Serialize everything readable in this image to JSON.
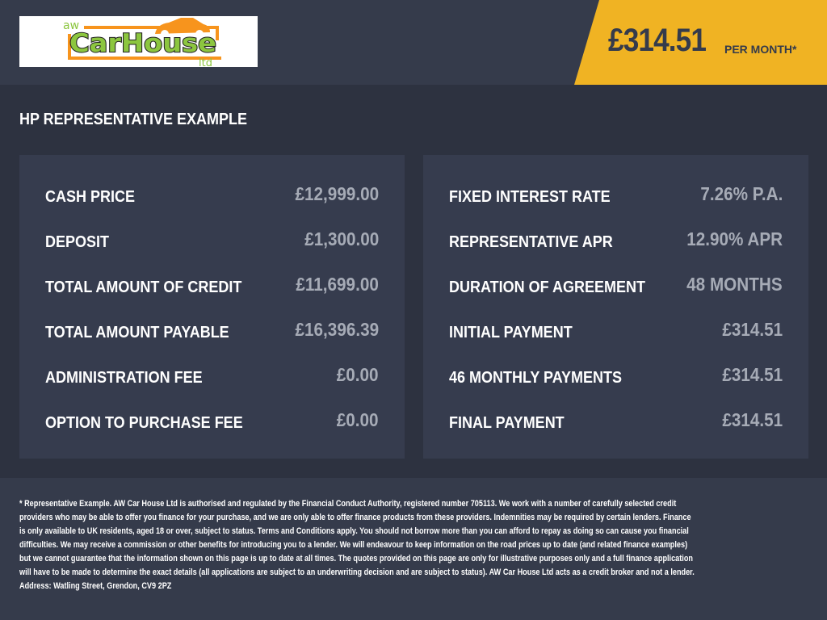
{
  "logo": {
    "text_aw": "aw",
    "text_main": "CarHouse",
    "text_ltd": "ltd"
  },
  "price": {
    "amount": "£314.51",
    "suffix": "PER MONTH*"
  },
  "title": "HP REPRESENTATIVE EXAMPLE",
  "left_rows": [
    {
      "label": "CASH PRICE",
      "value": "£12,999.00"
    },
    {
      "label": "DEPOSIT",
      "value": "£1,300.00"
    },
    {
      "label": "TOTAL AMOUNT OF CREDIT",
      "value": "£11,699.00"
    },
    {
      "label": "TOTAL AMOUNT PAYABLE",
      "value": "£16,396.39"
    },
    {
      "label": "ADMINISTRATION FEE",
      "value": "£0.00"
    },
    {
      "label": "OPTION TO PURCHASE FEE",
      "value": "£0.00"
    }
  ],
  "right_rows": [
    {
      "label": "FIXED INTEREST RATE",
      "value": "7.26% P.A."
    },
    {
      "label": "REPRESENTATIVE APR",
      "value": "12.90% APR"
    },
    {
      "label": "DURATION OF AGREEMENT",
      "value": "48 MONTHS"
    },
    {
      "label": "INITIAL PAYMENT",
      "value": "£314.51"
    },
    {
      "label": "46 MONTHLY PAYMENTS",
      "value": "£314.51"
    },
    {
      "label": "FINAL PAYMENT",
      "value": "£314.51"
    }
  ],
  "disclaimer": "* Representative Example. AW Car House Ltd is authorised and regulated by the Financial Conduct Authority, registered number 705113. We work with a number of carefully selected credit providers who may be able to offer you finance for your purchase, and we are only able to offer finance products from these providers. Indemnities may be required by certain lenders. Finance is only available to UK residents, aged 18 or over, subject to status. Terms and Conditions apply. You should not borrow more than you can afford to repay as doing so can cause you financial difficulties. We may receive a commission or other benefits for introducing you to a lender. We will endeavour to keep information on the road prices up to date (and related finance examples) but we cannot guarantee that the information shown on this page is up to date at all times. The quotes provided on this page are only for illustrative purposes only and a full finance application will have to be made to determine the exact details (all applications are subject to an underwriting decision and are subject to status). AW Car House Ltd acts as a credit broker and not a lender. Address: Watling Street, Grendon, CV9 2PZ",
  "colors": {
    "accent": "#f0b323",
    "logo_green": "#8cc63f",
    "logo_orange": "#f7941d"
  }
}
